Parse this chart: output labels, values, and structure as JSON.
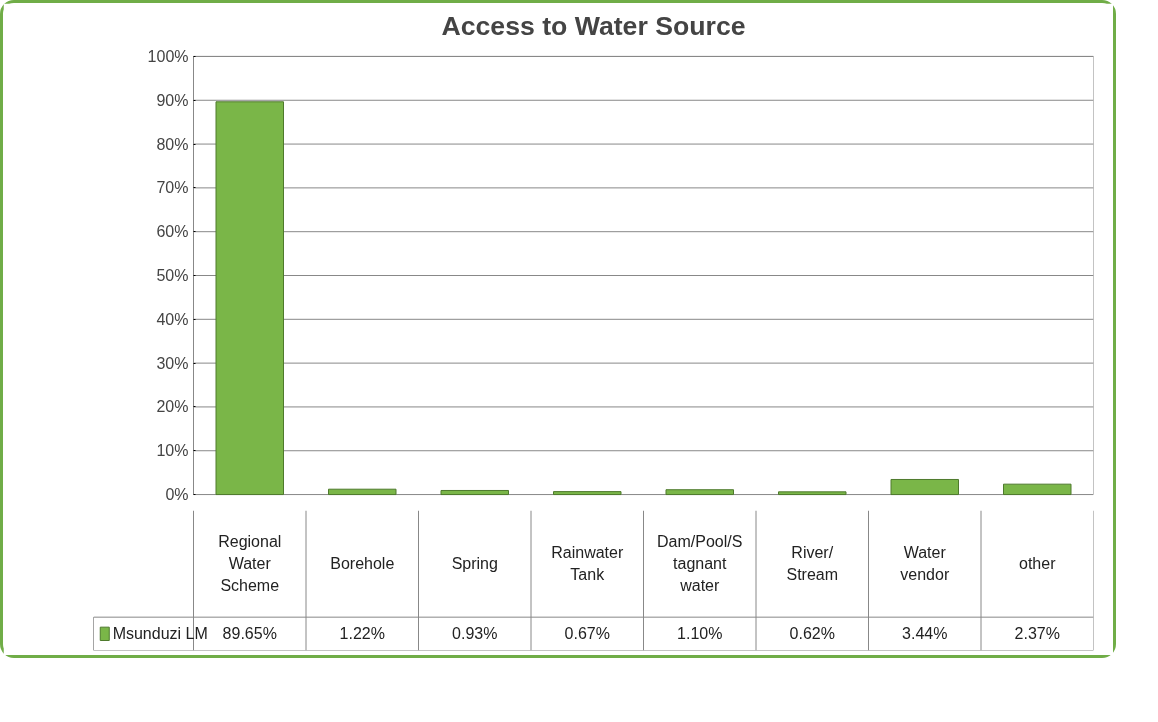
{
  "chart_data": {
    "type": "bar",
    "title": "Access to Water Source",
    "categories": [
      "Regional Water Scheme",
      "Borehole",
      "Spring",
      "Rainwater Tank",
      "Dam/Pool/Stagnant water",
      "River/ Stream",
      "Water vendor",
      "other"
    ],
    "series": [
      {
        "name": "Msunduzi LM",
        "color": "#7ab648",
        "values": [
          89.65,
          1.22,
          0.93,
          0.67,
          1.1,
          0.62,
          3.44,
          2.37
        ],
        "value_labels": [
          "89.65%",
          "1.22%",
          "0.93%",
          "0.67%",
          "1.10%",
          "0.62%",
          "3.44%",
          "2.37%"
        ]
      }
    ],
    "ylim": [
      0,
      100
    ],
    "yticks": [
      {
        "value": 0,
        "label": "0%"
      },
      {
        "value": 10,
        "label": "10%"
      },
      {
        "value": 20,
        "label": "20%"
      },
      {
        "value": 30,
        "label": "30%"
      },
      {
        "value": 40,
        "label": "40%"
      },
      {
        "value": 50,
        "label": "50%"
      },
      {
        "value": 60,
        "label": "60%"
      },
      {
        "value": 70,
        "label": "70%"
      },
      {
        "value": 80,
        "label": "80%"
      },
      {
        "value": 90,
        "label": "90%"
      },
      {
        "value": 100,
        "label": "100%"
      }
    ],
    "grid": "y",
    "legend": "bottom"
  }
}
